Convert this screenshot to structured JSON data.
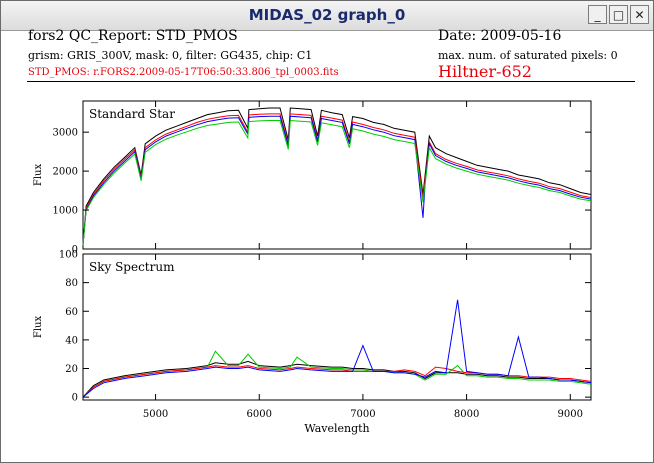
{
  "window": {
    "title": "MIDAS_02 graph_0",
    "minimize_glyph": "_",
    "maximize_glyph": "□",
    "close_glyph": "✕"
  },
  "header": {
    "report": "fors2 QC_Report: STD_PMOS",
    "date": "Date: 2009-05-16",
    "config": "grism: GRIS_300V, mask: 0, filter: GG435, chip: C1",
    "saturated": "max. num. of saturated pixels: 0",
    "filename": "STD_PMOS: r.FORS2.2009-05-17T06:50:33.806_tpl_0003.fits",
    "star": "Hiltner-652"
  },
  "colors": {
    "accent_red": "#e8000b",
    "title_blue": "#1a2a6c",
    "series_black": "#000000",
    "series_red": "#ff0000",
    "series_green": "#00cc00",
    "series_blue": "#0000ff"
  },
  "chart_data": [
    {
      "type": "line",
      "title": "Standard Star",
      "ylabel": "Flux",
      "xlabel": "",
      "xlim": [
        4300,
        9200
      ],
      "ylim": [
        0,
        3800
      ],
      "xticks": [
        5000,
        6000,
        7000,
        8000,
        9000
      ],
      "yticks": [
        0,
        1000,
        2000,
        3000
      ],
      "grid": false,
      "x": [
        4300,
        4330,
        4400,
        4500,
        4600,
        4700,
        4800,
        4860,
        4900,
        5000,
        5100,
        5200,
        5300,
        5400,
        5500,
        5600,
        5700,
        5800,
        5890,
        5900,
        6000,
        6100,
        6200,
        6280,
        6300,
        6400,
        6500,
        6563,
        6600,
        6700,
        6800,
        6870,
        6900,
        7000,
        7100,
        7200,
        7300,
        7400,
        7500,
        7580,
        7600,
        7640,
        7700,
        7800,
        7900,
        8000,
        8100,
        8200,
        8300,
        8400,
        8500,
        8600,
        8700,
        8800,
        8900,
        9000,
        9100,
        9200
      ],
      "series": [
        {
          "color": "#000000",
          "values": [
            100,
            1100,
            1450,
            1800,
            2100,
            2350,
            2600,
            1900,
            2700,
            2900,
            3050,
            3150,
            3250,
            3350,
            3450,
            3500,
            3550,
            3560,
            3100,
            3580,
            3600,
            3620,
            3620,
            2800,
            3620,
            3600,
            3580,
            2900,
            3560,
            3500,
            3450,
            2850,
            3400,
            3350,
            3250,
            3200,
            3100,
            3050,
            3000,
            1400,
            1900,
            2900,
            2600,
            2450,
            2350,
            2250,
            2150,
            2100,
            2050,
            2000,
            1900,
            1850,
            1800,
            1700,
            1650,
            1550,
            1450,
            1400
          ]
        },
        {
          "color": "#ff0000",
          "values": [
            100,
            1050,
            1400,
            1750,
            2050,
            2300,
            2550,
            1850,
            2600,
            2800,
            2950,
            3050,
            3150,
            3250,
            3330,
            3380,
            3420,
            3430,
            3000,
            3440,
            3460,
            3470,
            3470,
            2700,
            3470,
            3450,
            3430,
            2800,
            3410,
            3360,
            3310,
            2750,
            3260,
            3200,
            3120,
            3060,
            2970,
            2920,
            2870,
            1300,
            1800,
            2750,
            2450,
            2300,
            2200,
            2120,
            2030,
            1980,
            1930,
            1880,
            1800,
            1740,
            1690,
            1600,
            1550,
            1460,
            1370,
            1320
          ]
        },
        {
          "color": "#0000ff",
          "values": [
            100,
            1000,
            1360,
            1700,
            2000,
            2250,
            2500,
            1800,
            2550,
            2750,
            2900,
            3000,
            3100,
            3190,
            3270,
            3320,
            3360,
            3370,
            2950,
            3380,
            3400,
            3410,
            3410,
            2650,
            3410,
            3390,
            3370,
            2750,
            3350,
            3300,
            3250,
            2700,
            3200,
            3140,
            3060,
            3000,
            2910,
            2860,
            2810,
            800,
            1700,
            2700,
            2400,
            2250,
            2150,
            2070,
            1980,
            1930,
            1880,
            1830,
            1750,
            1690,
            1640,
            1550,
            1500,
            1410,
            1330,
            1280
          ]
        },
        {
          "color": "#00cc00",
          "values": [
            100,
            980,
            1320,
            1650,
            1950,
            2200,
            2440,
            1750,
            2480,
            2680,
            2820,
            2920,
            3010,
            3100,
            3170,
            3210,
            3250,
            3260,
            2850,
            3270,
            3290,
            3300,
            3300,
            2560,
            3300,
            3280,
            3260,
            2660,
            3240,
            3190,
            3140,
            2600,
            3090,
            3030,
            2950,
            2890,
            2810,
            2760,
            2710,
            1200,
            1650,
            2600,
            2320,
            2180,
            2080,
            2000,
            1920,
            1870,
            1820,
            1770,
            1690,
            1630,
            1580,
            1500,
            1450,
            1360,
            1280,
            1240
          ]
        }
      ]
    },
    {
      "type": "line",
      "title": "Sky Spectrum",
      "ylabel": "Flux",
      "xlabel": "Wavelength",
      "xlim": [
        4300,
        9200
      ],
      "ylim": [
        -2,
        100
      ],
      "xticks": [
        5000,
        6000,
        7000,
        8000,
        9000
      ],
      "yticks": [
        0,
        20,
        40,
        60,
        80,
        100
      ],
      "grid": false,
      "x": [
        4300,
        4400,
        4500,
        4700,
        4900,
        5100,
        5300,
        5500,
        5577,
        5700,
        5800,
        5892,
        6000,
        6200,
        6300,
        6364,
        6500,
        6700,
        6800,
        6900,
        7000,
        7100,
        7200,
        7300,
        7400,
        7500,
        7600,
        7700,
        7800,
        7913,
        8000,
        8100,
        8200,
        8300,
        8400,
        8500,
        8600,
        8700,
        8800,
        8900,
        9000,
        9100,
        9200
      ],
      "series": [
        {
          "color": "#000000",
          "values": [
            0,
            8,
            12,
            15,
            17,
            19,
            20,
            22,
            24,
            23,
            23,
            25,
            22,
            21,
            22,
            23,
            22,
            21,
            21,
            20,
            20,
            19,
            19,
            18,
            18,
            17,
            13,
            17,
            17,
            17,
            16,
            16,
            15,
            15,
            14,
            14,
            13,
            13,
            13,
            12,
            12,
            11,
            10
          ]
        },
        {
          "color": "#00cc00",
          "values": [
            0,
            7,
            11,
            14,
            16,
            18,
            19,
            21,
            32,
            22,
            22,
            30,
            21,
            20,
            21,
            28,
            21,
            20,
            20,
            19,
            19,
            18,
            18,
            17,
            17,
            16,
            12,
            16,
            16,
            22,
            15,
            15,
            14,
            14,
            13,
            13,
            12,
            12,
            12,
            11,
            11,
            10,
            9
          ]
        },
        {
          "color": "#ff0000",
          "values": [
            0,
            7,
            11,
            14,
            16,
            18,
            19,
            21,
            22,
            21,
            21,
            22,
            20,
            19,
            20,
            21,
            20,
            19,
            19,
            18,
            18,
            18,
            18,
            18,
            19,
            18,
            15,
            21,
            20,
            18,
            17,
            17,
            16,
            16,
            15,
            15,
            14,
            14,
            14,
            13,
            13,
            12,
            11
          ]
        },
        {
          "color": "#0000ff",
          "values": [
            0,
            6,
            10,
            13,
            15,
            17,
            18,
            20,
            21,
            20,
            20,
            21,
            19,
            18,
            19,
            20,
            19,
            18,
            18,
            18,
            36,
            18,
            18,
            17,
            17,
            16,
            14,
            18,
            17,
            68,
            18,
            17,
            16,
            16,
            15,
            42,
            14,
            14,
            13,
            12,
            12,
            11,
            10
          ]
        }
      ]
    }
  ]
}
